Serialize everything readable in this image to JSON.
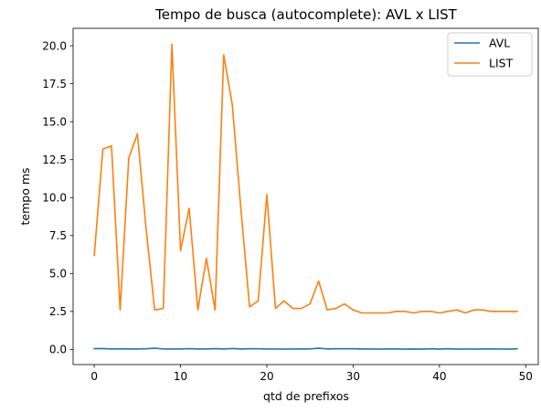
{
  "chart_data": {
    "type": "line",
    "title": "Tempo de busca (autocomplete): AVL x LIST",
    "xlabel": "qtd de prefixos",
    "ylabel": "tempo ms",
    "xlim": [
      -2.45,
      51.45
    ],
    "ylim": [
      -1.0,
      21.15
    ],
    "xticks": [
      "0",
      "10",
      "20",
      "30",
      "40",
      "50"
    ],
    "xtick_values": [
      0,
      10,
      20,
      30,
      40,
      50
    ],
    "yticks": [
      "0.0",
      "2.5",
      "5.0",
      "7.5",
      "10.0",
      "12.5",
      "15.0",
      "17.5",
      "20.0"
    ],
    "ytick_values": [
      0,
      2.5,
      5,
      7.5,
      10,
      12.5,
      15,
      17.5,
      20
    ],
    "grid": false,
    "legend_position": "top-right",
    "x": [
      0,
      1,
      2,
      3,
      4,
      5,
      6,
      7,
      8,
      9,
      10,
      11,
      12,
      13,
      14,
      15,
      16,
      17,
      18,
      19,
      20,
      21,
      22,
      23,
      24,
      25,
      26,
      27,
      28,
      29,
      30,
      31,
      32,
      33,
      34,
      35,
      36,
      37,
      38,
      39,
      40,
      41,
      42,
      43,
      44,
      45,
      46,
      47,
      48,
      49
    ],
    "series": [
      {
        "name": "AVL",
        "color": "#1f77b4",
        "values": [
          0.05,
          0.06,
          0.03,
          0.04,
          0.03,
          0.03,
          0.04,
          0.08,
          0.03,
          0.03,
          0.03,
          0.05,
          0.03,
          0.03,
          0.05,
          0.03,
          0.06,
          0.03,
          0.04,
          0.04,
          0.03,
          0.03,
          0.02,
          0.03,
          0.03,
          0.03,
          0.08,
          0.03,
          0.04,
          0.04,
          0.04,
          0.03,
          0.03,
          0.02,
          0.03,
          0.03,
          0.02,
          0.03,
          0.02,
          0.04,
          0.02,
          0.04,
          0.02,
          0.03,
          0.02,
          0.03,
          0.03,
          0.03,
          0.02,
          0.04
        ]
      },
      {
        "name": "LIST",
        "color": "#ff7f0e",
        "values": [
          6.2,
          13.2,
          13.4,
          2.6,
          12.6,
          14.2,
          8.0,
          2.6,
          2.7,
          20.1,
          6.5,
          9.3,
          2.6,
          6.0,
          2.6,
          19.4,
          16.1,
          9.2,
          2.8,
          3.2,
          10.2,
          2.7,
          3.2,
          2.7,
          2.7,
          3.0,
          4.5,
          2.6,
          2.7,
          3.0,
          2.6,
          2.4,
          2.4,
          2.4,
          2.4,
          2.5,
          2.5,
          2.4,
          2.5,
          2.5,
          2.4,
          2.5,
          2.6,
          2.4,
          2.6,
          2.6,
          2.5,
          2.5,
          2.5,
          2.5
        ]
      }
    ]
  }
}
